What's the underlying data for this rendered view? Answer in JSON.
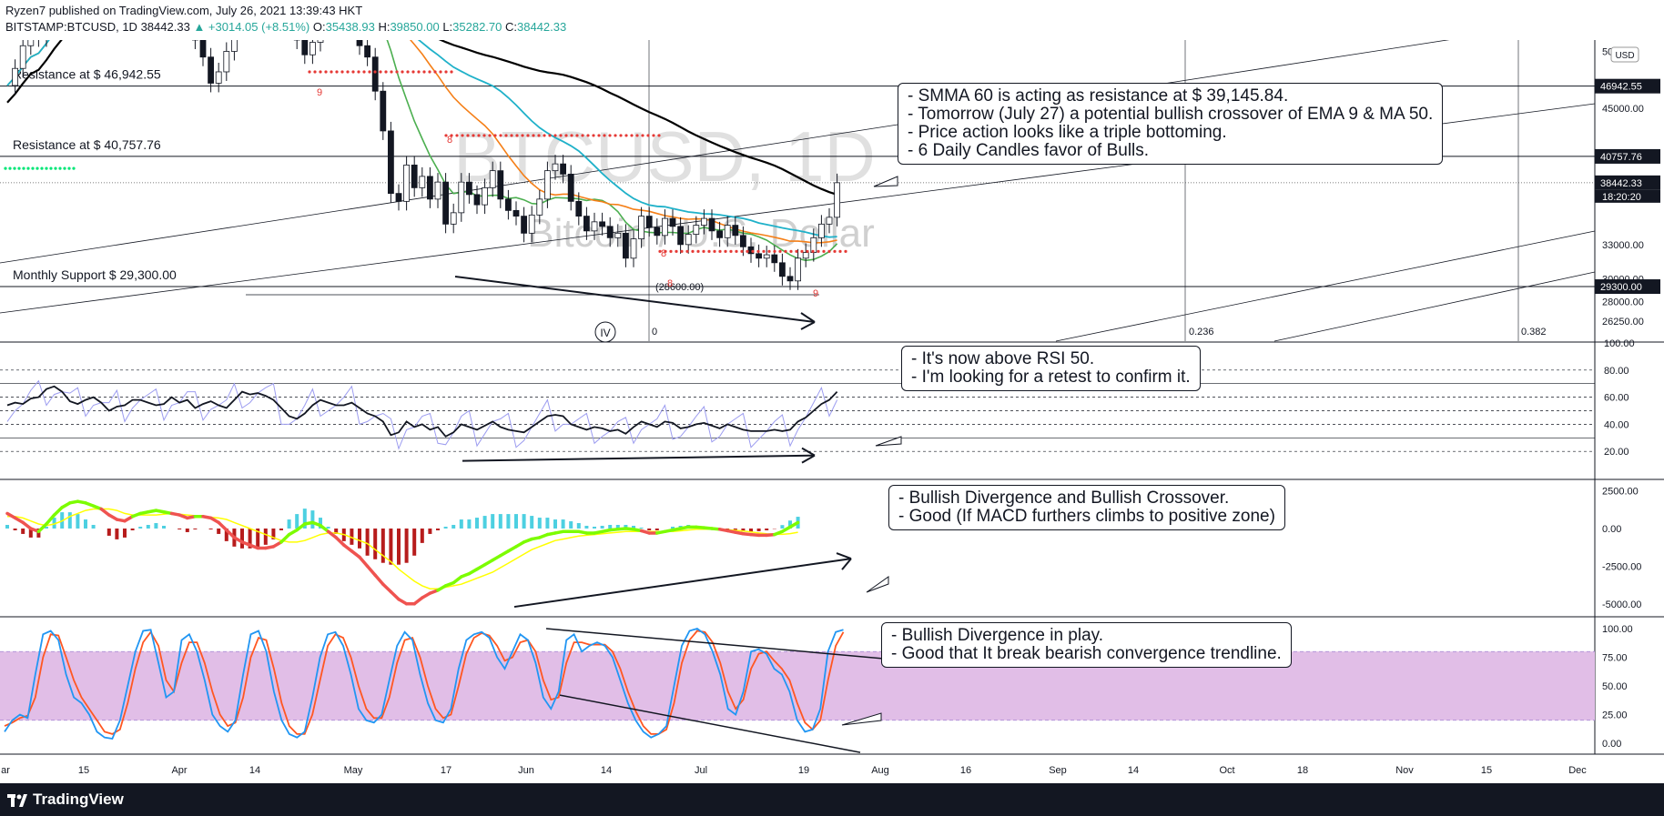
{
  "header": {
    "publisher_line": "Ryzen7 published on TradingView.com, July 26, 2021 13:39:43 HKT",
    "symbol": "BITSTAMP:BTCUSD, 1D",
    "last": "38442.33",
    "change": "▲ +3014.05 (+8.51%)",
    "open_label": "O:",
    "open": "35438.93",
    "high_label": "H:",
    "high": "39850.00",
    "low_label": "L:",
    "low": "35282.70",
    "close_label": "C:",
    "close": "38442.33"
  },
  "watermark": {
    "symbol": "BTCUSD, 1D",
    "name": "Bitcoin / U.S. Dollar"
  },
  "footer": {
    "brand": "TradingView"
  },
  "colors": {
    "up": "#26a69a",
    "down": "#ef5350",
    "smma": "#1fb1c9",
    "ema": "#f57f17",
    "ma9": "#4caf50",
    "ma200": "#000000",
    "rsi": "#131722",
    "rsi_fast": "#9c9cf0",
    "macd_fast": "#7cfc00",
    "macd_slow": "#ffff00",
    "stoch_k": "#2196f3",
    "stoch_d": "#ff5722",
    "band": "#e1bee7"
  },
  "notes": {
    "price": [
      "- SMMA 60 is acting as resistance at $ 39,145.84.",
      "- Tomorrow (July 27) a potential bullish crossover of EMA 9 & MA 50.",
      "- Price action looks like a triple bottoming.",
      "- 6 Daily Candles favor of Bulls."
    ],
    "rsi": [
      "- It's now above RSI 50.",
      "- I'm looking for a retest to confirm it."
    ],
    "macd": [
      "- Bullish Divergence and Bullish Crossover.",
      "- Good (If MACD furthers climbs to positive zone)"
    ],
    "stoch": [
      "- Bullish Divergence in play.",
      "- Good that It break bearish convergence trendline."
    ]
  },
  "chart_data": {
    "type": "candlestick",
    "x_axis_labels": [
      "ar",
      "15",
      "Apr",
      "14",
      "May",
      "17",
      "Jun",
      "14",
      "Jul",
      "19",
      "Aug",
      "16",
      "Sep",
      "14",
      "Oct",
      "18",
      "Nov",
      "15",
      "Dec"
    ],
    "price_panel": {
      "scale_ticks": [
        "50...",
        "45000.00",
        "33000.00",
        "30000.00",
        "28000.00",
        "26250.00"
      ],
      "currency_badge": "USD",
      "hlines": [
        {
          "label": "Resistance at $ 46,942.55",
          "price": 46942.55,
          "badge": "46942.55"
        },
        {
          "label": "Resistance at $ 40,757.76",
          "price": 40757.76,
          "badge": "40757.76"
        },
        {
          "label": "Monthly Support $ 29,300.00",
          "price": 29300.0,
          "badge": "29300.00"
        }
      ],
      "last_price_badge": "38442.33",
      "countdown": "18:20:20",
      "fib_labels": [
        "0",
        "0.236",
        "0.382"
      ],
      "low_annotation": "(28600.00)",
      "wave_label": "IV",
      "td_counts": [
        "9",
        "8",
        "8",
        "9",
        "8"
      ],
      "close_series": [
        47000,
        48500,
        50500,
        52000,
        51200,
        55000,
        57500,
        58500,
        56500,
        57000,
        58800,
        59800,
        58000,
        55000,
        57500,
        59000,
        60200,
        61000,
        59500,
        58000,
        56500,
        55500,
        54000,
        53500,
        51000,
        49500,
        47200,
        48200,
        50000,
        52500,
        56000,
        57500,
        58200,
        59000,
        57000,
        55500,
        53800,
        51000,
        49700,
        50800,
        55500,
        58000,
        57500,
        55000,
        53000,
        50500,
        49500,
        46500,
        43000,
        37500,
        36800,
        40000,
        38000,
        39000,
        37000,
        38500,
        34800,
        35800,
        38500,
        37400,
        36500,
        38000,
        39500,
        37000,
        36000,
        35500,
        34000,
        35600,
        37000,
        39500,
        40100,
        39200,
        36800,
        35500,
        34200,
        35000,
        34600,
        33600,
        34000,
        31800,
        33500,
        35500,
        34500,
        33800,
        35300,
        34600,
        33000,
        33900,
        34700,
        35300,
        34200,
        33600,
        34700,
        33800,
        32800,
        32200,
        31800,
        32100,
        31400,
        30200,
        29800,
        31800,
        32300,
        33600,
        34800,
        35400,
        38442
      ],
      "ohlc_last": {
        "open": 35438.93,
        "high": 39850.0,
        "low": 35282.7,
        "close": 38442.33
      }
    },
    "rsi_panel": {
      "ticks": [
        "100.00",
        "80.00",
        "60.00",
        "40.00",
        "20.00"
      ],
      "values": [
        54,
        56,
        55,
        59,
        60,
        66,
        68,
        64,
        57,
        55,
        58,
        60,
        56,
        50,
        53,
        54,
        58,
        58,
        56,
        54,
        55,
        60,
        56,
        58,
        52,
        55,
        57,
        54,
        52,
        58,
        64,
        62,
        63,
        61,
        58,
        52,
        46,
        44,
        48,
        54,
        58,
        56,
        54,
        54,
        56,
        52,
        48,
        46,
        42,
        32,
        34,
        42,
        38,
        40,
        36,
        38,
        31,
        34,
        40,
        38,
        36,
        39,
        42,
        38,
        36,
        35,
        34,
        38,
        42,
        46,
        47,
        46,
        40,
        38,
        36,
        38,
        37,
        35,
        36,
        33,
        38,
        42,
        40,
        38,
        42,
        41,
        37,
        38,
        40,
        41,
        39,
        37,
        40,
        38,
        36,
        35,
        35,
        35,
        36,
        35,
        36,
        42,
        45,
        50,
        55,
        58,
        64
      ]
    },
    "macd_panel": {
      "ticks": [
        "2500.00",
        "0.00",
        "-2500.00",
        "-5000.00"
      ],
      "series": [
        {
          "name": "MACD",
          "values": [
            1000,
            700,
            400,
            0,
            -200,
            300,
            900,
            1400,
            1700,
            1800,
            1700,
            1500,
            1300,
            900,
            600,
            500,
            800,
            1000,
            1100,
            1200,
            1100,
            1000,
            900,
            700,
            800,
            800,
            700,
            400,
            -100,
            -600,
            -900,
            -1100,
            -1300,
            -1300,
            -1200,
            -900,
            -400,
            -100,
            300,
            400,
            200,
            -200,
            -600,
            -1100,
            -1500,
            -1900,
            -2500,
            -3100,
            -3700,
            -4200,
            -4700,
            -5000,
            -5000,
            -4600,
            -4300,
            -4100,
            -3800,
            -3600,
            -3200,
            -3000,
            -2700,
            -2400,
            -2100,
            -1800,
            -1500,
            -1200,
            -900,
            -700,
            -600,
            -400,
            -300,
            -200,
            -200,
            -200,
            -300,
            -300,
            -200,
            -100,
            -50,
            0,
            -50,
            -150,
            -300,
            -300,
            -200,
            -100,
            0,
            100,
            100,
            50,
            0,
            -50,
            -150,
            -250,
            -350,
            -400,
            -450,
            -450,
            -400,
            -200,
            100,
            400
          ]
        },
        {
          "name": "Signal",
          "values": [
            800,
            800,
            700,
            500,
            300,
            200,
            300,
            500,
            800,
            1000,
            1200,
            1300,
            1300,
            1300,
            1200,
            1000,
            900,
            900,
            900,
            900,
            950,
            1000,
            950,
            900,
            850,
            800,
            750,
            700,
            600,
            400,
            200,
            0,
            -200,
            -400,
            -600,
            -800,
            -900,
            -900,
            -800,
            -600,
            -400,
            -300,
            -300,
            -400,
            -600,
            -800,
            -1000,
            -1400,
            -1800,
            -2200,
            -2700,
            -3100,
            -3500,
            -3800,
            -4000,
            -4000,
            -3900,
            -3800,
            -3700,
            -3500,
            -3300,
            -3100,
            -2900,
            -2600,
            -2300,
            -2000,
            -1700,
            -1400,
            -1200,
            -1000,
            -800,
            -700,
            -600,
            -500,
            -450,
            -400,
            -350,
            -300,
            -250,
            -200,
            -200,
            -200,
            -200,
            -200,
            -200,
            -200,
            -150,
            -100,
            -50,
            -50,
            -50,
            -50,
            -80,
            -120,
            -170,
            -230,
            -300,
            -350,
            -380,
            -390,
            -340,
            -250
          ]
        }
      ]
    },
    "stoch_panel": {
      "ticks": [
        "100.00",
        "75.00",
        "50.00",
        "25.00",
        "0.00"
      ],
      "series": [
        {
          "name": "%K",
          "values": [
            10,
            20,
            25,
            22,
            60,
            95,
            98,
            90,
            60,
            40,
            35,
            25,
            10,
            5,
            4,
            20,
            50,
            80,
            98,
            99,
            70,
            40,
            45,
            90,
            95,
            80,
            55,
            25,
            15,
            10,
            20,
            60,
            95,
            98,
            80,
            45,
            20,
            8,
            5,
            10,
            40,
            75,
            95,
            97,
            85,
            60,
            30,
            20,
            18,
            25,
            55,
            85,
            97,
            90,
            60,
            35,
            20,
            18,
            30,
            65,
            90,
            95,
            97,
            92,
            75,
            65,
            80,
            95,
            90,
            70,
            40,
            30,
            45,
            90,
            95,
            80,
            85,
            88,
            85,
            75,
            55,
            35,
            20,
            10,
            5,
            8,
            15,
            50,
            85,
            98,
            100,
            95,
            80,
            60,
            30,
            25,
            45,
            80,
            82,
            78,
            65,
            60,
            45,
            20,
            10,
            12,
            30,
            80,
            97,
            99
          ]
        },
        {
          "name": "%D",
          "values": [
            15,
            18,
            22,
            24,
            40,
            75,
            95,
            94,
            75,
            55,
            40,
            30,
            20,
            10,
            8,
            12,
            35,
            65,
            88,
            97,
            85,
            55,
            45,
            70,
            88,
            88,
            70,
            45,
            25,
            15,
            18,
            40,
            75,
            92,
            90,
            65,
            35,
            15,
            8,
            8,
            25,
            55,
            85,
            95,
            92,
            75,
            50,
            30,
            22,
            22,
            40,
            70,
            90,
            92,
            75,
            50,
            30,
            22,
            25,
            50,
            78,
            92,
            96,
            94,
            85,
            72,
            75,
            88,
            90,
            80,
            55,
            38,
            40,
            70,
            88,
            88,
            86,
            86,
            86,
            80,
            65,
            45,
            28,
            15,
            8,
            8,
            12,
            35,
            70,
            90,
            98,
            97,
            88,
            70,
            45,
            30,
            38,
            65,
            78,
            80,
            72,
            65,
            55,
            35,
            18,
            12,
            20,
            55,
            85,
            97
          ]
        }
      ]
    }
  }
}
